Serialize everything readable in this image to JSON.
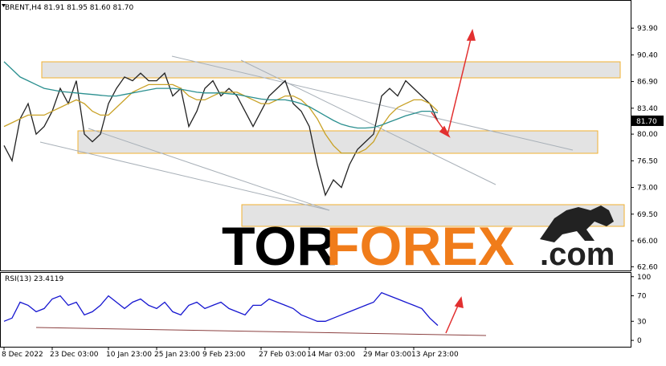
{
  "chart_data": [
    {
      "type": "line",
      "title": "BRENT,H4  81.91 81.95 81.60 81.70",
      "ylim": [
        62.0,
        97.6
      ],
      "yticks": [
        {
          "value": 93.9,
          "label": "93.90"
        },
        {
          "value": 90.4,
          "label": "90.40"
        },
        {
          "value": 86.9,
          "label": "86.90"
        },
        {
          "value": 83.4,
          "label": "83.40"
        },
        {
          "value": 80.0,
          "label": "80.00"
        },
        {
          "value": 76.5,
          "label": "76.50"
        },
        {
          "value": 73.0,
          "label": "73.00"
        },
        {
          "value": 69.5,
          "label": "69.50"
        },
        {
          "value": 66.0,
          "label": "66.00"
        },
        {
          "value": 62.6,
          "label": "62.60"
        }
      ],
      "price_marker": {
        "value": 81.7,
        "label": "81.70"
      },
      "series": [
        {
          "color": "#222222",
          "values": [
            78.5,
            76.5,
            82,
            84,
            80,
            81,
            83,
            86,
            84,
            87,
            80,
            79,
            80,
            84,
            86,
            87.5,
            87,
            88,
            87,
            87,
            88,
            85,
            86,
            81,
            83,
            86,
            87,
            85,
            86,
            85,
            83,
            81,
            83,
            85,
            86,
            87,
            84,
            83,
            81,
            76,
            72,
            74,
            73,
            76,
            78,
            79,
            80,
            85,
            86,
            85,
            87,
            86,
            85,
            84,
            81.7
          ]
        },
        {
          "color": "#c9a227",
          "values": [
            81,
            81.5,
            82,
            82.5,
            82.5,
            82.5,
            83,
            83.5,
            84,
            84.5,
            84,
            83,
            82.5,
            82.5,
            83.5,
            84.5,
            85.5,
            86,
            86.5,
            86.5,
            86.5,
            86.5,
            86,
            85,
            84.5,
            84.5,
            85,
            85.5,
            85.5,
            85.5,
            85,
            84.5,
            84,
            84,
            84.5,
            85,
            85,
            84.5,
            83.5,
            82,
            80,
            78.5,
            77.5,
            77.5,
            77.5,
            78,
            79,
            81,
            82.5,
            83.5,
            84,
            84.5,
            84.5,
            84,
            83
          ]
        },
        {
          "color": "#2a8f8f",
          "values": [
            89.5,
            88.5,
            87.5,
            87,
            86.5,
            86,
            85.8,
            85.6,
            85.5,
            85.4,
            85.3,
            85.2,
            85.1,
            85,
            85,
            85.2,
            85.4,
            85.6,
            85.8,
            86,
            86,
            86,
            85.9,
            85.7,
            85.5,
            85.4,
            85.4,
            85.4,
            85.3,
            85.2,
            85,
            84.8,
            84.6,
            84.5,
            84.5,
            84.5,
            84.3,
            84,
            83.6,
            83,
            82.4,
            81.8,
            81.3,
            81,
            80.8,
            80.8,
            80.9,
            81.2,
            81.6,
            82,
            82.4,
            82.7,
            83,
            83,
            82.8
          ]
        }
      ]
    },
    {
      "type": "line",
      "title": "RSI(13) 23.4119",
      "ylim": [
        -10,
        106
      ],
      "yticks": [
        100,
        70,
        30,
        0
      ],
      "categories": [
        "8 Dec 2022",
        null,
        null,
        null,
        null,
        null,
        "23 Dec 03:00",
        null,
        null,
        null,
        null,
        null,
        null,
        "10 Jan 23:00",
        null,
        null,
        null,
        null,
        null,
        "25 Jan 23:00",
        null,
        null,
        null,
        null,
        null,
        "9 Feb 23:00",
        null,
        null,
        null,
        null,
        null,
        null,
        "27 Feb 03:00",
        null,
        null,
        null,
        null,
        null,
        "14 Mar 03:00",
        null,
        null,
        null,
        null,
        null,
        null,
        "29 Mar 03:00",
        null,
        null,
        null,
        null,
        null,
        "13 Apr 23:00",
        null,
        null,
        null
      ],
      "series": [
        {
          "color": "#1515d0",
          "values": [
            30,
            35,
            60,
            55,
            45,
            50,
            65,
            70,
            55,
            60,
            40,
            45,
            55,
            70,
            60,
            50,
            60,
            65,
            55,
            50,
            60,
            45,
            40,
            55,
            60,
            50,
            55,
            60,
            50,
            45,
            40,
            55,
            55,
            65,
            60,
            55,
            50,
            40,
            35,
            30,
            30,
            35,
            40,
            45,
            50,
            55,
            60,
            75,
            70,
            65,
            60,
            55,
            50,
            35,
            23.4119
          ]
        }
      ]
    }
  ],
  "watermark": {
    "tor": "TOR",
    "forex": "FOREX",
    "com": ".com"
  }
}
